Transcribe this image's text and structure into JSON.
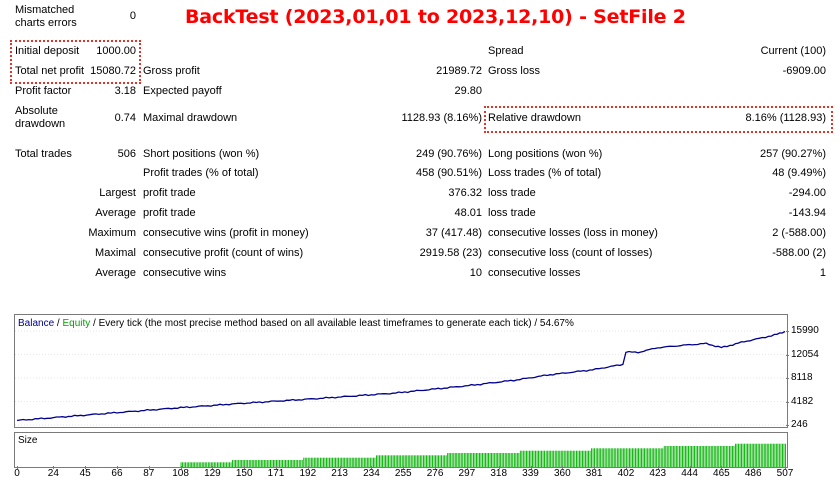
{
  "title": "BackTest (2023,01,01 to 2023,12,10) - SetFile 2",
  "stats": {
    "mismatched_label_1": "Mismatched",
    "mismatched_label_2": "charts errors",
    "mismatched_value": "0",
    "initial_deposit_label": "Initial deposit",
    "initial_deposit_value": "1000.00",
    "spread_label": "Spread",
    "spread_value": "Current (100)",
    "total_net_profit_label": "Total net profit",
    "total_net_profit_value": "15080.72",
    "gross_profit_label": "Gross profit",
    "gross_profit_value": "21989.72",
    "gross_loss_label": "Gross loss",
    "gross_loss_value": "-6909.00",
    "profit_factor_label": "Profit factor",
    "profit_factor_value": "3.18",
    "expected_payoff_label": "Expected payoff",
    "expected_payoff_value": "29.80",
    "absolute_dd_label_1": "Absolute",
    "absolute_dd_label_2": "drawdown",
    "absolute_dd_value": "0.74",
    "maximal_dd_label": "Maximal drawdown",
    "maximal_dd_value": "1128.93 (8.16%)",
    "relative_dd_label": "Relative drawdown",
    "relative_dd_value": "8.16% (1128.93)",
    "total_trades_label": "Total trades",
    "total_trades_value": "506",
    "short_label": "Short positions (won %)",
    "short_value": "249 (90.76%)",
    "long_label": "Long positions (won %)",
    "long_value": "257 (90.27%)",
    "profit_trades_label": "Profit trades (% of total)",
    "profit_trades_value": "458 (90.51%)",
    "loss_trades_label": "Loss trades (% of total)",
    "loss_trades_value": "48 (9.49%)",
    "largest_label": "Largest",
    "largest_profit_label": "profit trade",
    "largest_profit_value": "376.32",
    "largest_loss_label": "loss trade",
    "largest_loss_value": "-294.00",
    "average_label": "Average",
    "average_profit_label": "profit trade",
    "average_profit_value": "48.01",
    "average_loss_label": "loss trade",
    "average_loss_value": "-143.94",
    "maximum_label": "Maximum",
    "max_cons_wins_label": "consecutive wins (profit in money)",
    "max_cons_wins_value": "37 (417.48)",
    "max_cons_losses_label": "consecutive losses (loss in money)",
    "max_cons_losses_value": "2 (-588.00)",
    "maximal_label": "Maximal",
    "maximal_cons_profit_label": "consecutive profit (count of wins)",
    "maximal_cons_profit_value": "2919.58 (23)",
    "maximal_cons_loss_label": "consecutive loss (count of losses)",
    "maximal_cons_loss_value": "-588.00 (2)",
    "average2_label": "Average",
    "avg_cons_wins_label": "consecutive wins",
    "avg_cons_wins_value": "10",
    "avg_cons_losses_label": "consecutive losses",
    "avg_cons_losses_value": "1"
  },
  "chart": {
    "legend_balance": "Balance",
    "legend_sep1": " / ",
    "legend_equity": "Equity",
    "legend_rest": " / Every tick (the most precise method based on all available least timeframes to generate each tick) / 54.67%",
    "size_label": "Size",
    "colors": {
      "balance": "#00008b",
      "size_bars": "#00b000",
      "legend_balance": "#00008b",
      "legend_equity": "#00a000"
    }
  },
  "chart_data": {
    "type": "line",
    "series": [
      {
        "name": "Balance",
        "x": [
          0,
          50,
          100,
          150,
          200,
          250,
          300,
          330,
          350,
          380,
          400,
          402,
          410,
          423,
          440,
          455,
          465,
          480,
          500,
          507
        ],
        "values": [
          1000,
          2000,
          3000,
          3900,
          4700,
          5600,
          6900,
          7800,
          8600,
          9500,
          10400,
          12500,
          12400,
          13200,
          13600,
          13900,
          13200,
          14200,
          15300,
          15900
        ]
      }
    ],
    "yticks": [
      "15990",
      "12054",
      "8118",
      "4182",
      "246"
    ],
    "xticks": [
      "0",
      "24",
      "45",
      "66",
      "87",
      "108",
      "129",
      "150",
      "171",
      "192",
      "213",
      "234",
      "255",
      "276",
      "297",
      "318",
      "339",
      "360",
      "381",
      "402",
      "423",
      "444",
      "465",
      "486",
      "507"
    ],
    "ylim": [
      246,
      15990
    ],
    "xlim": [
      0,
      507
    ],
    "size_series": {
      "name": "Size",
      "x_start": 108,
      "x_end": 507,
      "start_level": 0.15,
      "end_level": 0.85
    }
  }
}
